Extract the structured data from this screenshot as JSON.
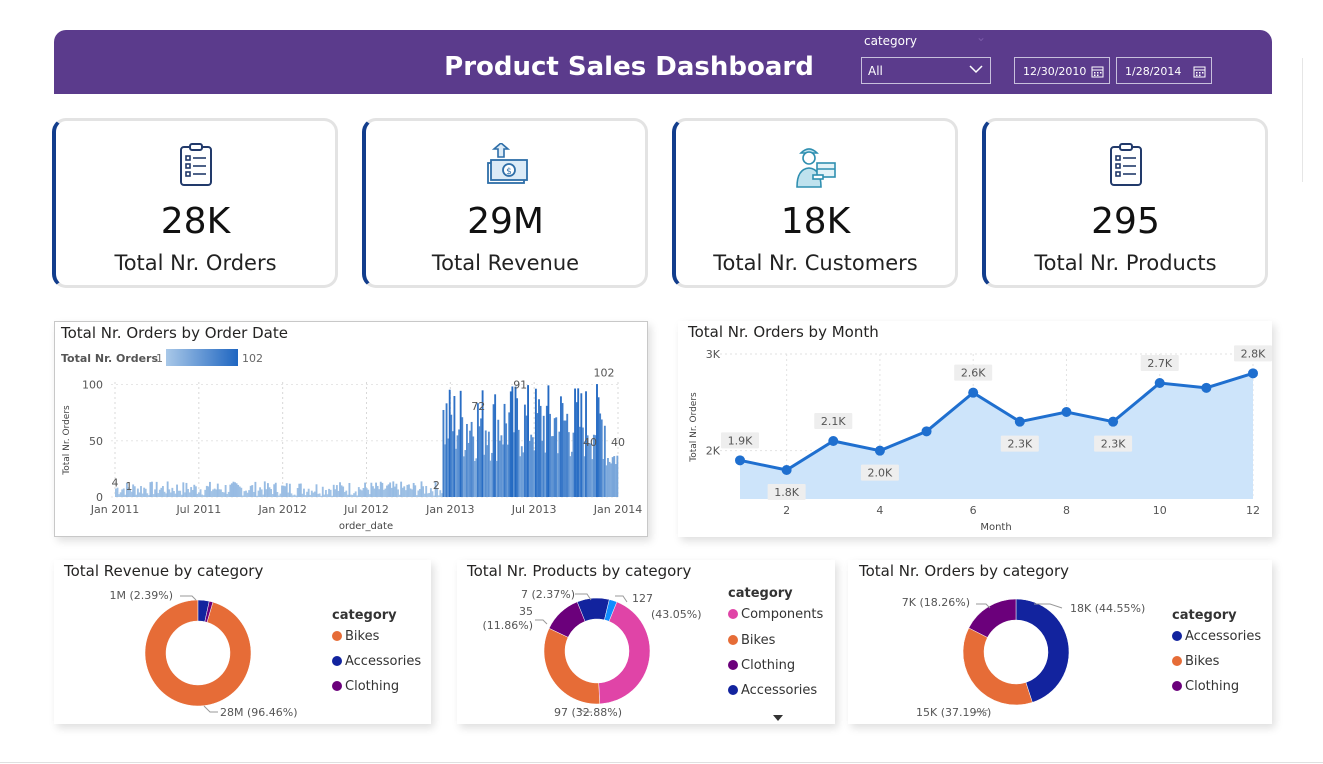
{
  "header": {
    "title": "Product Sales Dashboard",
    "filter_label": "category",
    "category_value": "All",
    "date_start": "12/30/2010",
    "date_end": "1/28/2014",
    "bg_color": "#5b3b8c"
  },
  "kpis": [
    {
      "icon": "clipboard-icon",
      "value": "28K",
      "label": "Total Nr. Orders"
    },
    {
      "icon": "money-icon",
      "value": "29M",
      "label": "Total Revenue"
    },
    {
      "icon": "delivery-person-icon",
      "value": "18K",
      "label": "Total Nr. Customers"
    },
    {
      "icon": "clipboard-icon",
      "value": "295",
      "label": "Total Nr. Products"
    }
  ],
  "chart_data": [
    {
      "type": "bar",
      "title": "Total Nr. Orders by Order Date",
      "xlabel": "order_date",
      "ylabel": "Total Nr. Orders",
      "legend_label": "Total Nr. Orders",
      "legend_min": "1",
      "legend_max": "102",
      "x_ticks": [
        "Jan 2011",
        "Jul 2011",
        "Jan 2012",
        "Jul 2012",
        "Jan 2013",
        "Jul 2013",
        "Jan 2014"
      ],
      "y_ticks": [
        "0",
        "50",
        "100"
      ],
      "ylim": [
        0,
        120
      ],
      "color_low": "#a9c8e8",
      "color_high": "#1f66c1",
      "phases": [
        {
          "from": "Jan 2011",
          "to": "Dec 2012",
          "typical_range": [
            1,
            14
          ]
        },
        {
          "from": "Jan 2013",
          "to": "Dec 2013",
          "typical_range": [
            30,
            102
          ]
        },
        {
          "from": "Jan 2014",
          "to": "Jan 2014",
          "typical_range": [
            25,
            45
          ]
        }
      ],
      "annotations": [
        {
          "date": "Jan 2011",
          "label": "4",
          "value": 4
        },
        {
          "date": "Feb 2011",
          "label": "1",
          "value": 1
        },
        {
          "date": "Dec 2012",
          "label": "2",
          "value": 2
        },
        {
          "date": "Mar 2013",
          "label": "72",
          "value": 72
        },
        {
          "date": "Jun 2013",
          "label": "91",
          "value": 91
        },
        {
          "date": "Nov 2013",
          "label": "40",
          "value": 40
        },
        {
          "date": "Dec 2013",
          "label": "102",
          "value": 102
        },
        {
          "date": "Jan 2014",
          "label": "40",
          "value": 40
        }
      ]
    },
    {
      "type": "area",
      "title": "Total Nr. Orders by Month",
      "xlabel": "Month",
      "ylabel": "Total Nr. Orders",
      "x": [
        1,
        2,
        3,
        4,
        5,
        6,
        7,
        8,
        9,
        10,
        11,
        12
      ],
      "values": [
        1900,
        1800,
        2100,
        2000,
        2200,
        2600,
        2300,
        2400,
        2300,
        2700,
        2650,
        2800
      ],
      "labels": [
        "1.9K",
        "1.8K",
        "2.1K",
        "2.0K",
        "",
        "2.6K",
        "2.3K",
        "",
        "2.3K",
        "2.7K",
        "",
        "2.8K"
      ],
      "x_ticks": [
        "2",
        "4",
        "6",
        "8",
        "10",
        "12"
      ],
      "y_ticks": [
        "2K",
        "3K"
      ],
      "ylim": [
        1500,
        3000
      ],
      "line_color": "#1f6fcf",
      "area_color": "#cde4fa"
    },
    {
      "type": "pie",
      "title": "Total Revenue by category",
      "legend_title": "category",
      "series": [
        {
          "name": "Bikes",
          "value": 28,
          "label": "28M (96.46%)",
          "color": "#e66c37"
        },
        {
          "name": "Accessories",
          "value": 1,
          "label": "1M (2.39%)",
          "color": "#12239e"
        },
        {
          "name": "Clothing",
          "value": 0.33,
          "label": "",
          "color": "#6b007b"
        }
      ]
    },
    {
      "type": "pie",
      "title": "Total Nr. Products by category",
      "legend_title": "category",
      "series": [
        {
          "name": "Components",
          "value": 127,
          "label": "127 (43.05%)",
          "color": "#e044a7"
        },
        {
          "name": "Bikes",
          "value": 97,
          "label": "97 (32.88%)",
          "color": "#e66c37"
        },
        {
          "name": "Clothing",
          "value": 35,
          "label": "35 (11.86%)",
          "color": "#6b007b"
        },
        {
          "name": "Accessories",
          "value": 29,
          "label": "",
          "color": "#12239e"
        },
        {
          "name": "",
          "value": 7,
          "label": "7 (2.37%)",
          "color": "#118dff"
        }
      ]
    },
    {
      "type": "pie",
      "title": "Total Nr. Orders by category",
      "legend_title": "category",
      "series": [
        {
          "name": "Accessories",
          "value": 18,
          "label": "18K (44.55%)",
          "color": "#12239e"
        },
        {
          "name": "Bikes",
          "value": 15,
          "label": "15K (37.19%)",
          "color": "#e66c37"
        },
        {
          "name": "Clothing",
          "value": 7,
          "label": "7K (18.26%)",
          "color": "#6b007b"
        }
      ]
    }
  ]
}
